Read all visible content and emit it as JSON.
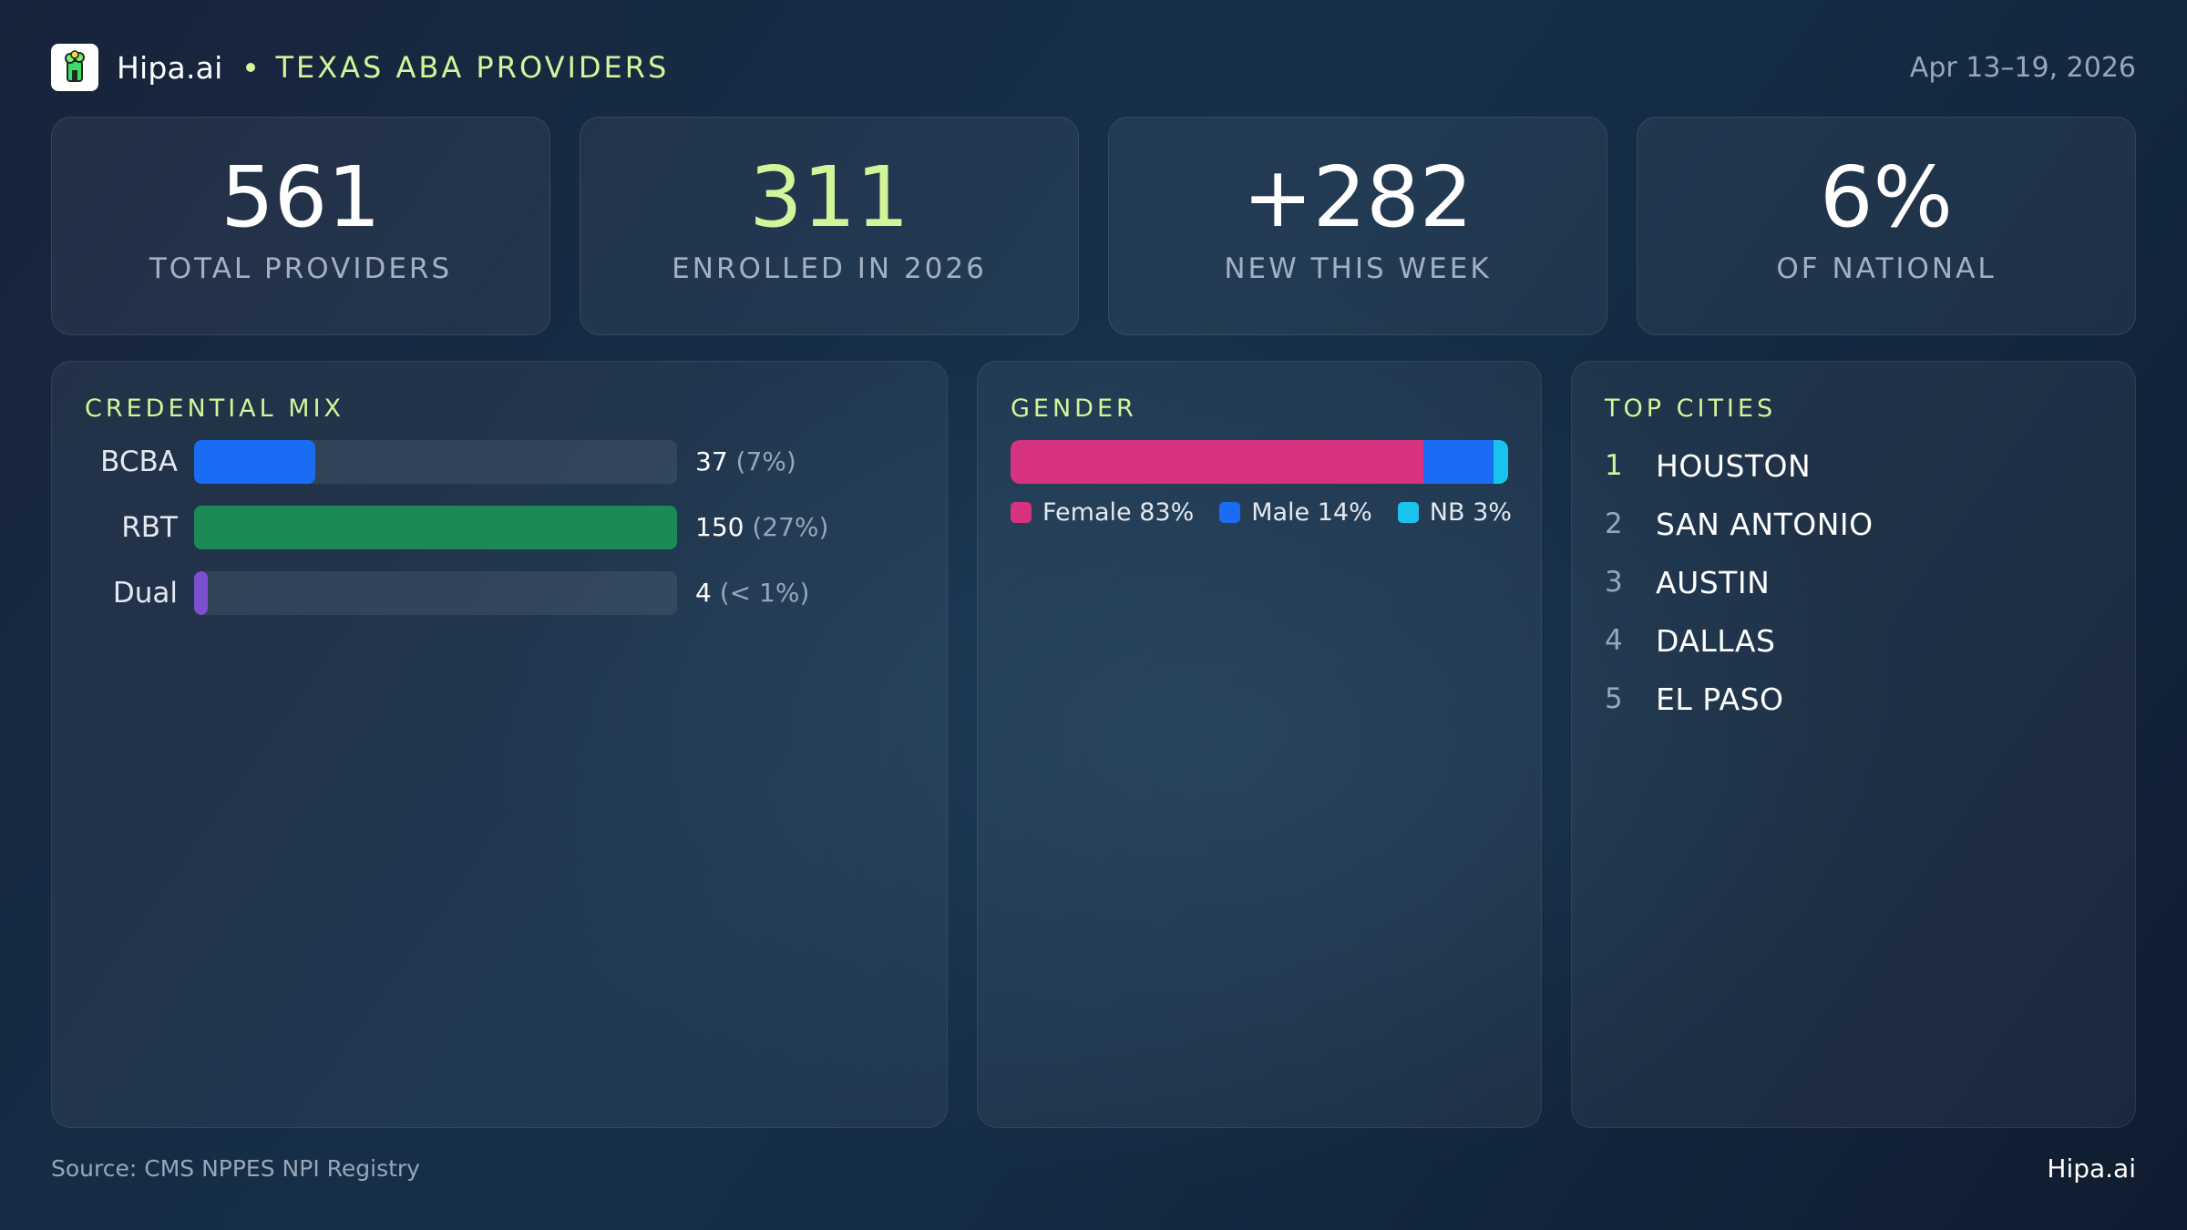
{
  "header": {
    "brand": "Hipa.ai",
    "region": "TEXAS ABA PROVIDERS",
    "date_range": "Apr 13–19, 2026",
    "logo_icon": "tree-icon"
  },
  "kpis": [
    {
      "value": "561",
      "label": "TOTAL PROVIDERS"
    },
    {
      "value": "311",
      "label": "ENROLLED IN 2026"
    },
    {
      "value": "+282",
      "label": "NEW THIS WEEK"
    },
    {
      "value": "6%",
      "label": "OF NATIONAL"
    }
  ],
  "credential_mix": {
    "title": "CREDENTIAL MIX",
    "items": [
      {
        "label": "BCBA",
        "count": "37",
        "pct": "(7%)",
        "fill": 0.25,
        "color": "#1a6cf5"
      },
      {
        "label": "RBT",
        "count": "150",
        "pct": "(27%)",
        "fill": 1.0,
        "color": "#1c8a55"
      },
      {
        "label": "Dual",
        "count": "4",
        "pct": "(< 1%)",
        "fill": 0.028,
        "color": "#7b4fd0"
      }
    ]
  },
  "gender": {
    "title": "GENDER",
    "segments": [
      {
        "label": "Female 83%",
        "share": 83,
        "color": "#d7327f"
      },
      {
        "label": "Male 14%",
        "share": 14,
        "color": "#1a6cf5"
      },
      {
        "label": "NB 3%",
        "share": 3,
        "color": "#19c3ec"
      }
    ]
  },
  "top_cities": {
    "title": "TOP CITIES",
    "items": [
      {
        "rank": "1",
        "name": "HOUSTON"
      },
      {
        "rank": "2",
        "name": "SAN ANTONIO"
      },
      {
        "rank": "3",
        "name": "AUSTIN"
      },
      {
        "rank": "4",
        "name": "DALLAS"
      },
      {
        "rank": "5",
        "name": "EL PASO"
      }
    ]
  },
  "footer": {
    "source": "Source: CMS NPPES NPI Registry",
    "brand": "Hipa.ai"
  },
  "colors": {
    "accent": "#d3f59a",
    "muted": "#98a6b8"
  }
}
